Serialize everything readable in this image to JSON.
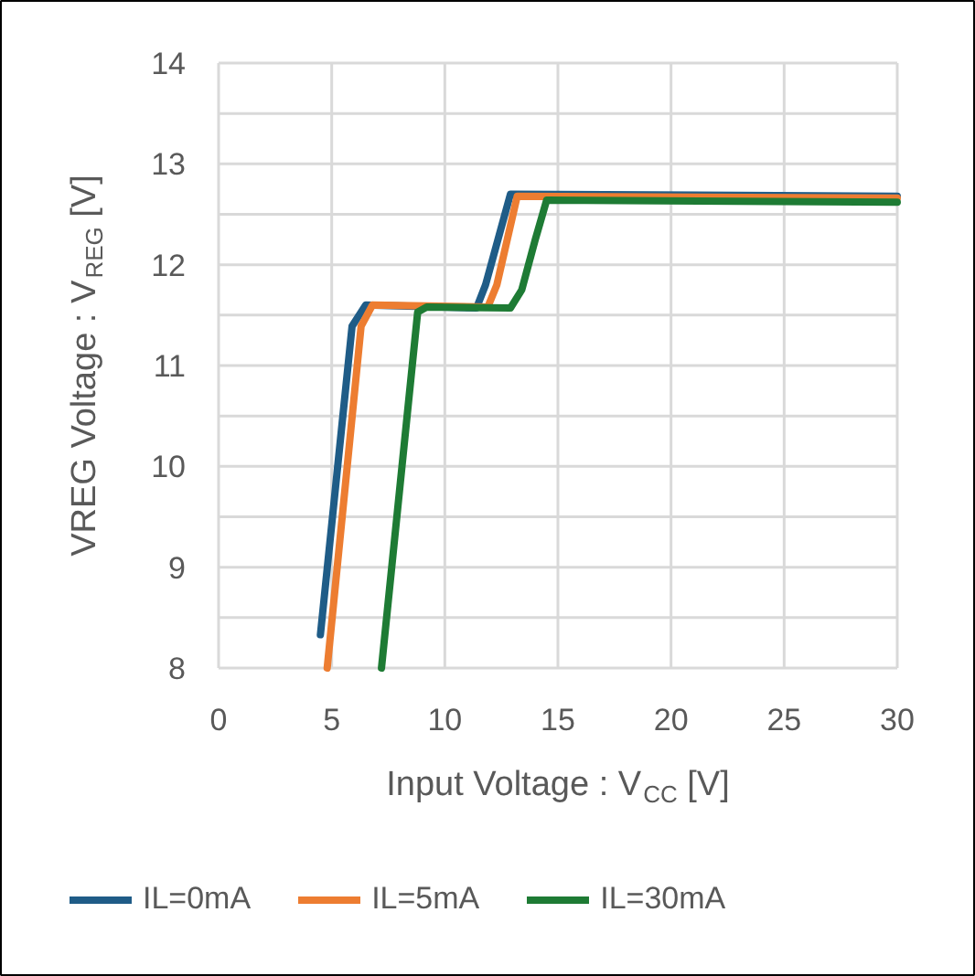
{
  "chart_data": {
    "type": "line",
    "xlabel": "Input Voltage : V$_{CC}$ [V]",
    "ylabel": "VREG Voltage : V$_{REG}$ [V]",
    "xlim": [
      0,
      30
    ],
    "ylim": [
      8,
      14
    ],
    "xticks": [
      0,
      5,
      10,
      15,
      20,
      25,
      30
    ],
    "yticks": [
      8,
      9,
      10,
      11,
      12,
      13,
      14
    ],
    "grid": true,
    "legend": "bottom",
    "line_style": "solid",
    "series": [
      {
        "name": "IL=0mA",
        "color": "#1f5c87",
        "x": [
          4.5,
          5.9,
          6.5,
          11.4,
          11.8,
          12.9,
          30
        ],
        "values": [
          8.33,
          11.39,
          11.6,
          11.57,
          11.8,
          12.7,
          12.68
        ]
      },
      {
        "name": "IL=5mA",
        "color": "#ed7d31",
        "x": [
          4.8,
          6.3,
          6.8,
          11.9,
          12.3,
          13.2,
          30
        ],
        "values": [
          8.0,
          11.39,
          11.6,
          11.58,
          11.8,
          12.68,
          12.66
        ]
      },
      {
        "name": "IL=30mA",
        "color": "#1e7b34",
        "x": [
          7.2,
          8.8,
          9.2,
          12.9,
          13.4,
          14.0,
          14.5,
          30
        ],
        "values": [
          8.0,
          11.53,
          11.58,
          11.57,
          11.75,
          12.25,
          12.64,
          12.62
        ]
      }
    ]
  }
}
